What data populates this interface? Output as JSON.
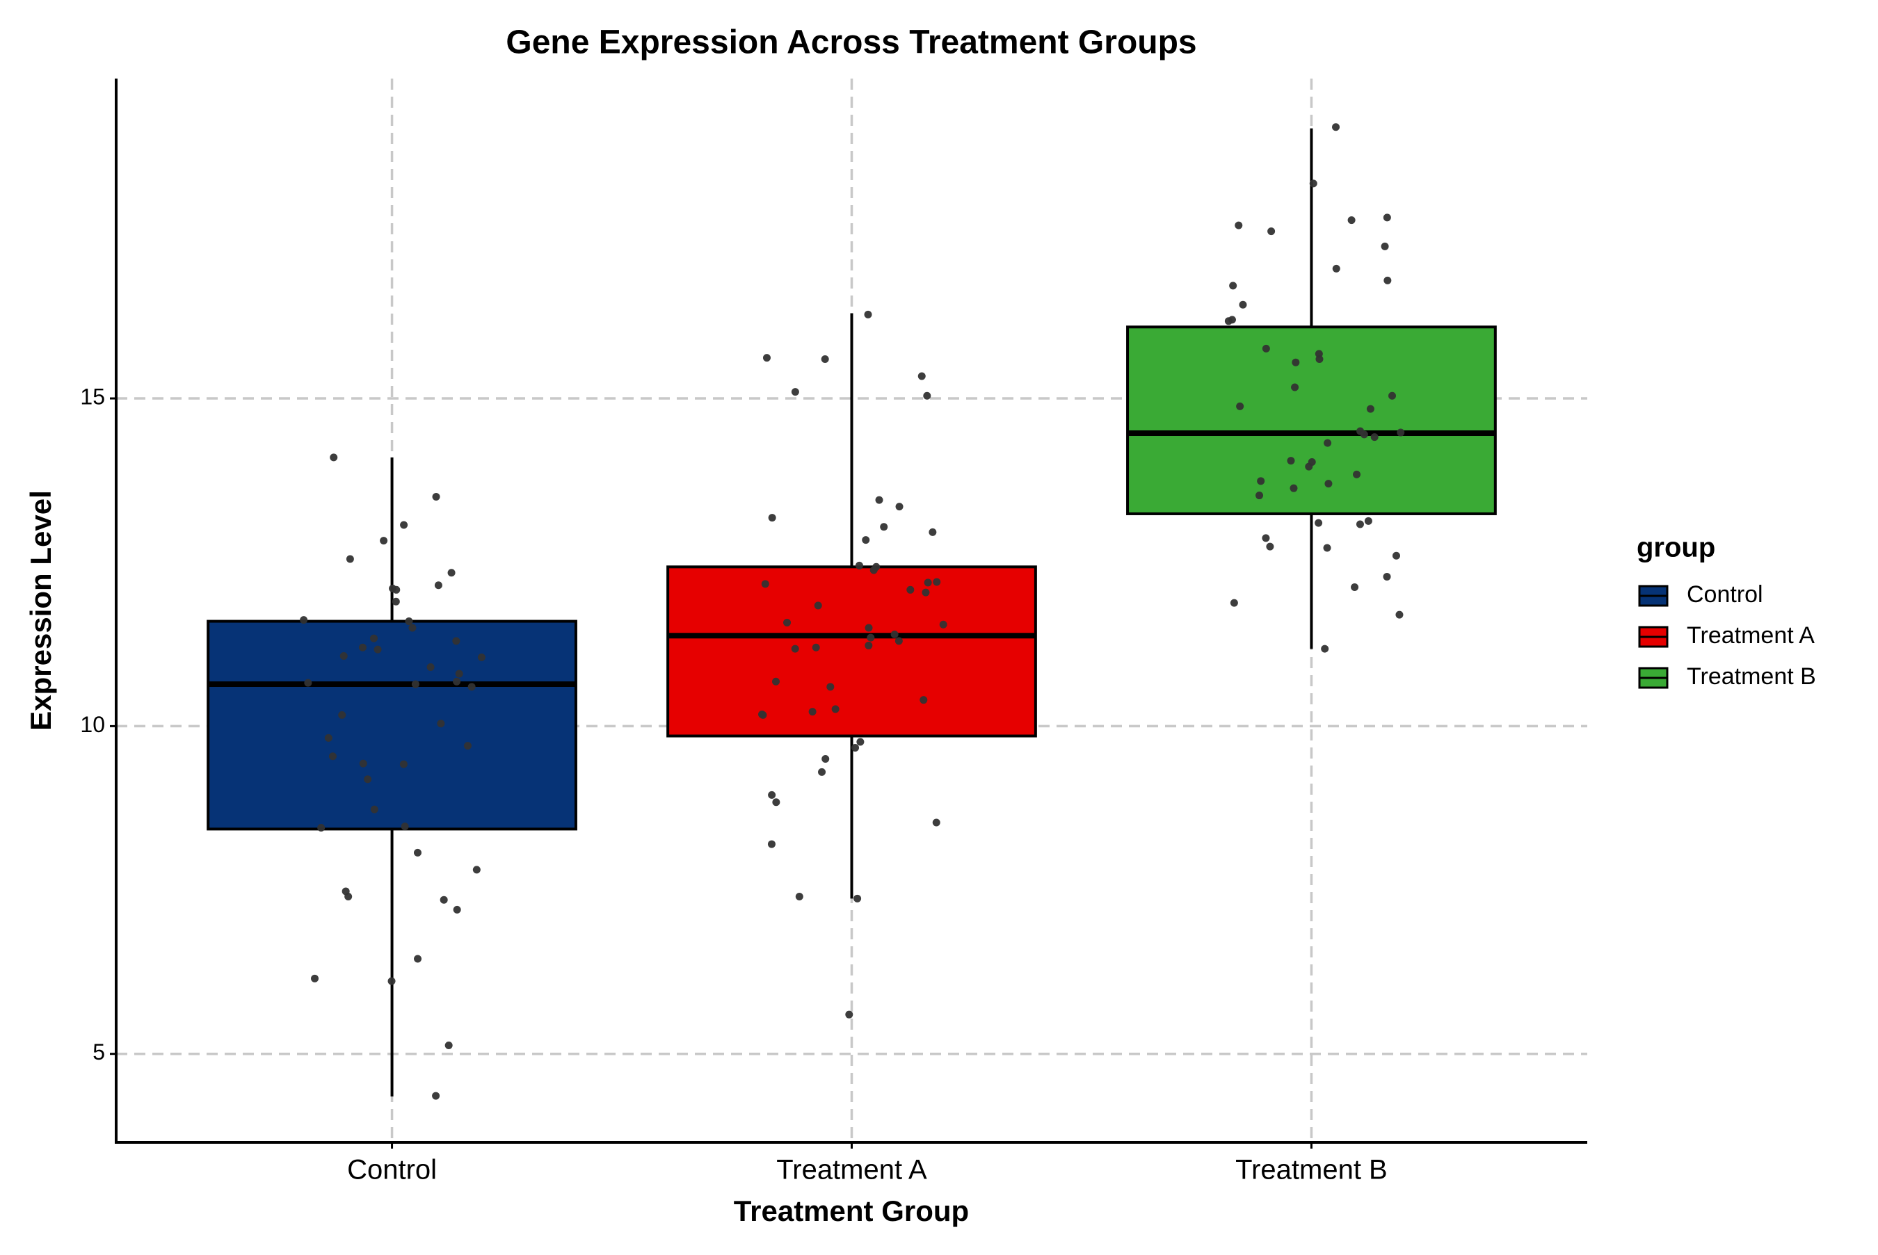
{
  "chart_data": {
    "type": "box",
    "title": "Gene Expression Across Treatment Groups",
    "x_label": "Treatment Group",
    "y_label": "Expression Level",
    "legend_title": "group",
    "legend_position": "right",
    "grid": true,
    "categories": [
      "Control",
      "Treatment A",
      "Treatment B"
    ],
    "ylim": [
      3.65,
      19.88
    ],
    "yticks": [
      5,
      10,
      15
    ],
    "series": [
      {
        "name": "Control",
        "color": "#063376",
        "whislo": 4.35,
        "q1": 8.43,
        "med": 10.64,
        "q3": 11.6,
        "whishi": 14.1,
        "points": [
          14.1,
          13.5,
          13.07,
          12.83,
          12.55,
          12.34,
          12.15,
          12.1,
          12.08,
          11.9,
          11.62,
          11.6,
          11.5,
          11.34,
          11.3,
          11.2,
          11.17,
          11.07,
          11.05,
          10.9,
          10.8,
          10.68,
          10.66,
          10.64,
          10.6,
          10.17,
          10.04,
          9.82,
          9.7,
          9.54,
          9.43,
          9.42,
          9.19,
          8.73,
          8.47,
          8.45,
          8.07,
          7.81,
          7.48,
          7.4,
          7.35,
          7.2,
          6.45,
          6.15,
          6.11,
          5.13,
          4.36
        ]
      },
      {
        "name": "Treatment A",
        "color": "#e60000",
        "whislo": 7.37,
        "q1": 9.85,
        "med": 11.38,
        "q3": 12.43,
        "whishi": 16.3,
        "points": [
          16.28,
          15.62,
          15.6,
          15.34,
          15.1,
          15.04,
          13.45,
          13.35,
          13.18,
          13.04,
          12.96,
          12.84,
          12.45,
          12.43,
          12.38,
          12.2,
          12.19,
          12.17,
          12.08,
          12.04,
          11.84,
          11.58,
          11.55,
          11.5,
          11.4,
          11.35,
          11.3,
          11.23,
          11.2,
          11.18,
          10.68,
          10.6,
          10.4,
          10.26,
          10.22,
          10.18,
          10.17,
          9.76,
          9.67,
          9.5,
          9.3,
          8.95,
          8.84,
          8.53,
          8.2,
          7.4,
          7.37,
          5.6
        ]
      },
      {
        "name": "Treatment B",
        "color": "#3aaa35",
        "whislo": 11.18,
        "q1": 13.24,
        "med": 14.47,
        "q3": 16.09,
        "whishi": 19.12,
        "points": [
          19.14,
          18.28,
          17.76,
          17.72,
          17.64,
          17.55,
          17.32,
          16.98,
          16.8,
          16.72,
          16.43,
          16.2,
          16.18,
          15.76,
          15.68,
          15.6,
          15.55,
          15.17,
          15.04,
          14.88,
          14.84,
          14.5,
          14.48,
          14.45,
          14.41,
          14.32,
          14.05,
          14.03,
          13.96,
          13.84,
          13.74,
          13.7,
          13.63,
          13.52,
          13.13,
          13.1,
          13.08,
          12.87,
          12.74,
          12.72,
          12.6,
          12.28,
          12.12,
          11.88,
          11.7,
          11.18
        ]
      }
    ]
  }
}
